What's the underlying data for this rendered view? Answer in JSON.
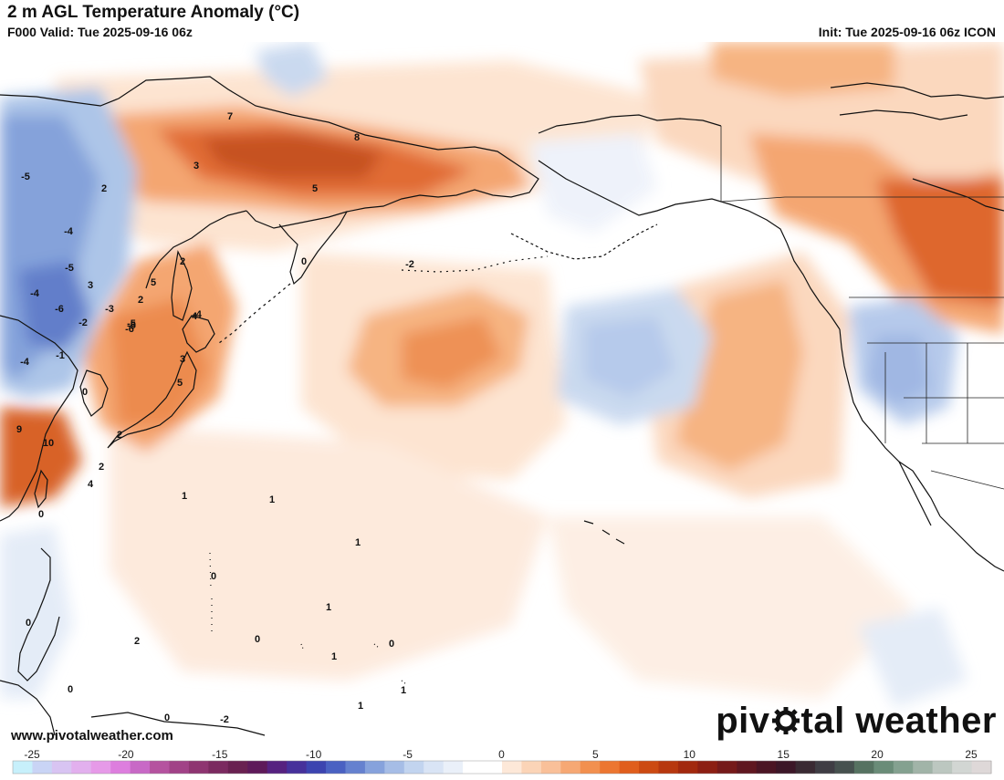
{
  "header": {
    "title": "2 m AGL Temperature Anomaly (°C)",
    "valid": "F000 Valid: Tue 2025-09-16 06z",
    "init": "Init: Tue 2025-09-16 06z ICON"
  },
  "footer": {
    "watermark": "www.pivotalweather.com",
    "brand_left": "piv",
    "brand_right": "tal weather"
  },
  "colorbar": {
    "min": -25,
    "max": 25,
    "ticks": [
      "-25",
      "-20",
      "-15",
      "-10",
      "-5",
      "0",
      "5",
      "10",
      "15",
      "20",
      "25"
    ],
    "colors": [
      "#c7f0fb",
      "#c9d4f5",
      "#d8c4f2",
      "#e2b0ee",
      "#e69ae8",
      "#dd7ede",
      "#c869c6",
      "#b5539f",
      "#a14287",
      "#8e3571",
      "#7b2a60",
      "#692151",
      "#5e1a5a",
      "#562280",
      "#46319b",
      "#3c44b0",
      "#4a61c2",
      "#6581cf",
      "#86a2dc",
      "#a6bde6",
      "#c2d4ef",
      "#d9e4f5",
      "#eaf0f9",
      "#ffffff",
      "#ffffff",
      "#fde8d8",
      "#fbd4b7",
      "#f9c099",
      "#f6a874",
      "#f2904f",
      "#ec7631",
      "#e05e1d",
      "#cc4a12",
      "#b7380f",
      "#a2290e",
      "#8c1f13",
      "#751a1a",
      "#5f1720",
      "#4b1524",
      "#3c1728",
      "#3a2a33",
      "#3f3d44",
      "#46514f",
      "#567261",
      "#6a8c78",
      "#84a190",
      "#a1b4a8",
      "#bcc7c0",
      "#d2d6d3",
      "#ded8d8"
    ]
  },
  "map_labels": [
    {
      "v": "7"
    },
    {
      "v": "8"
    },
    {
      "v": "3"
    },
    {
      "v": "5"
    },
    {
      "v": "-5"
    },
    {
      "v": "2"
    },
    {
      "v": "-4"
    },
    {
      "v": "-5"
    },
    {
      "v": "3"
    },
    {
      "v": "-4"
    },
    {
      "v": "-6"
    },
    {
      "v": "-3"
    },
    {
      "v": "-2"
    },
    {
      "v": "-5"
    },
    {
      "v": "2"
    },
    {
      "v": "5"
    },
    {
      "v": "2"
    },
    {
      "v": "0"
    },
    {
      "v": "-2"
    },
    {
      "v": "-1"
    },
    {
      "v": "-4"
    },
    {
      "v": "0"
    },
    {
      "v": "9"
    },
    {
      "v": "10"
    },
    {
      "v": "2"
    },
    {
      "v": "4"
    },
    {
      "v": "1"
    },
    {
      "v": "1"
    },
    {
      "v": "0"
    },
    {
      "v": "1"
    },
    {
      "v": "0"
    },
    {
      "v": "1"
    },
    {
      "v": "0"
    },
    {
      "v": "2"
    },
    {
      "v": "0"
    },
    {
      "v": "1"
    },
    {
      "v": "0"
    },
    {
      "v": "0"
    },
    {
      "v": "1"
    },
    {
      "v": "1"
    },
    {
      "v": "0"
    },
    {
      "v": "-2"
    },
    {
      "v": "-4"
    },
    {
      "v": "4"
    },
    {
      "v": "5"
    },
    {
      "v": "3"
    },
    {
      "v": "2"
    },
    {
      "v": "-5"
    },
    {
      "v": "-6"
    }
  ]
}
